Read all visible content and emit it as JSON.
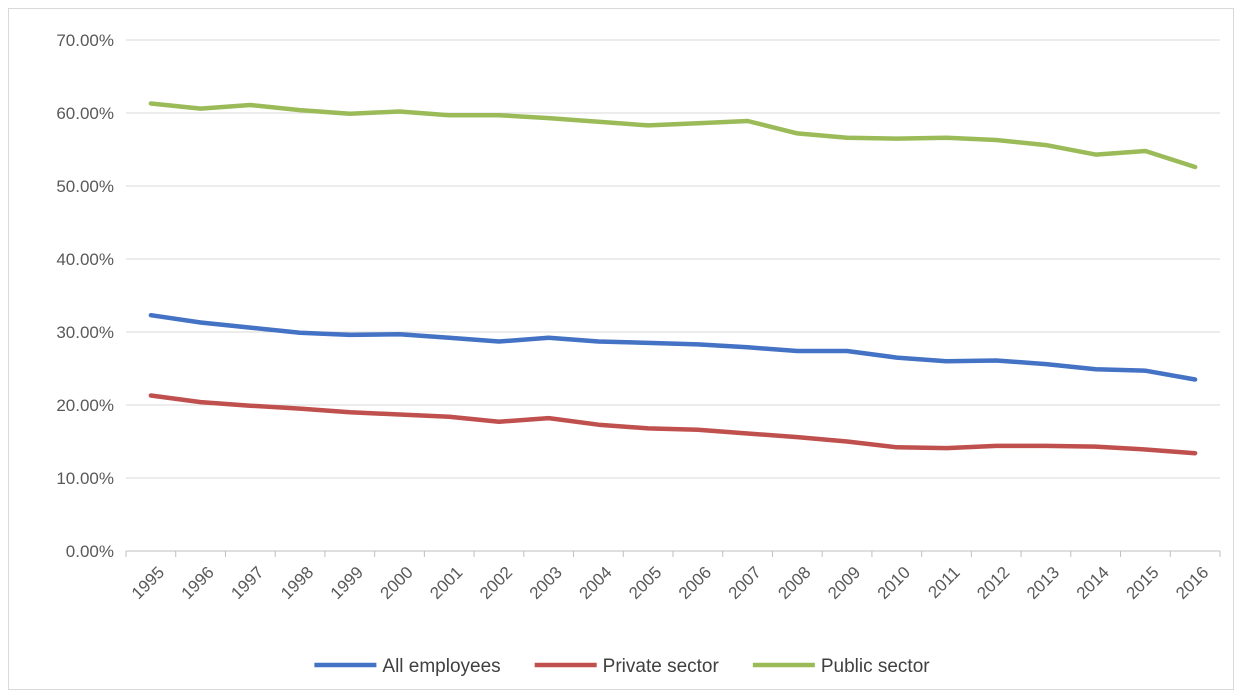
{
  "chart_data": {
    "type": "line",
    "title": "",
    "xlabel": "",
    "ylabel": "",
    "ylim": [
      0,
      70
    ],
    "y_tick_labels": [
      "0.00%",
      "10.00%",
      "20.00%",
      "30.00%",
      "40.00%",
      "50.00%",
      "60.00%",
      "70.00%"
    ],
    "y_ticks": [
      0,
      10,
      20,
      30,
      40,
      50,
      60,
      70
    ],
    "grid": "horizontal",
    "legend_position": "bottom",
    "categories": [
      "1995",
      "1996",
      "1997",
      "1998",
      "1999",
      "2000",
      "2001",
      "2002",
      "2003",
      "2004",
      "2005",
      "2006",
      "2007",
      "2008",
      "2009",
      "2010",
      "2011",
      "2012",
      "2013",
      "2014",
      "2015",
      "2016"
    ],
    "series": [
      {
        "name": "All employees",
        "color": "#4472c4",
        "values": [
          32.3,
          31.3,
          30.6,
          29.9,
          29.6,
          29.7,
          29.2,
          28.7,
          29.2,
          28.7,
          28.5,
          28.3,
          27.9,
          27.4,
          27.4,
          26.5,
          26.0,
          26.1,
          25.6,
          24.9,
          24.7,
          23.5
        ]
      },
      {
        "name": "Private sector",
        "color": "#c0504d",
        "values": [
          21.3,
          20.4,
          19.9,
          19.5,
          19.0,
          18.7,
          18.4,
          17.7,
          18.2,
          17.3,
          16.8,
          16.6,
          16.1,
          15.6,
          15.0,
          14.2,
          14.1,
          14.4,
          14.4,
          14.3,
          13.9,
          13.4
        ]
      },
      {
        "name": "Public sector",
        "color": "#9bbb59",
        "values": [
          61.3,
          60.6,
          61.1,
          60.4,
          59.9,
          60.2,
          59.7,
          59.7,
          59.3,
          58.8,
          58.3,
          58.6,
          58.9,
          57.2,
          56.6,
          56.5,
          56.6,
          56.3,
          55.6,
          54.3,
          54.8,
          52.6
        ]
      }
    ]
  }
}
